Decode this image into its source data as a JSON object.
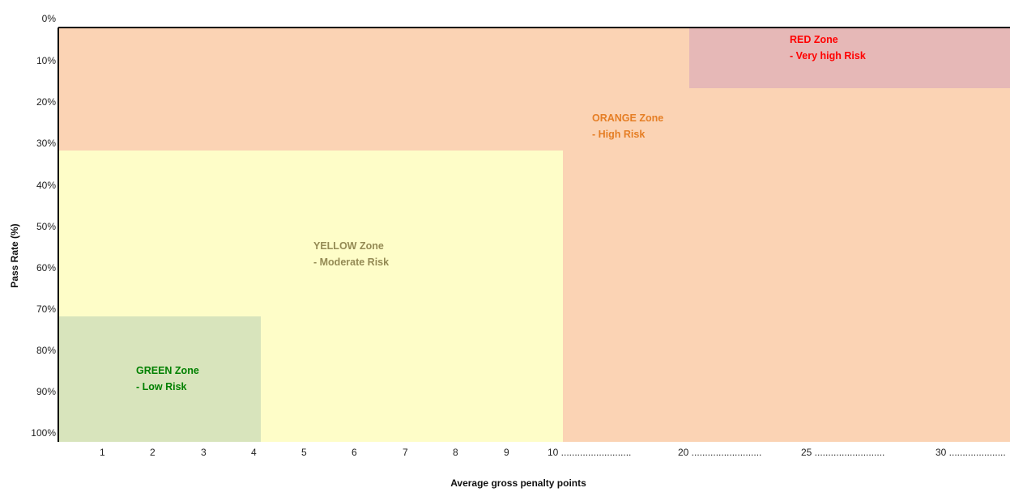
{
  "chart_data": {
    "type": "heatmap",
    "title": "",
    "xlabel": "Average gross penalty points",
    "ylabel": "Pass Rate (%)",
    "x_ticks": [
      "1",
      "2",
      "3",
      "4",
      "5",
      "6",
      "7",
      "8",
      "9",
      "10 ..........................",
      "20 ..........................",
      "25 ..........................",
      "30 ....................."
    ],
    "y_ticks": [
      "0%",
      "10%",
      "20%",
      "30%",
      "40%",
      "50%",
      "60%",
      "70%",
      "80%",
      "90%",
      "100%"
    ],
    "zones": [
      {
        "name": "ORANGE",
        "line1": "ORANGE Zone",
        "line2": "- High Risk",
        "color": "#fbd3b4",
        "text_color": "#e57e25",
        "x_range": [
          "0",
          "30+"
        ],
        "pass_rate_range": [
          0,
          100
        ]
      },
      {
        "name": "RED",
        "line1": "RED Zone",
        "line2": "- Very high Risk",
        "color": "#e6b8b7",
        "text_color": "#ff0000",
        "x_range": [
          "20",
          "30+"
        ],
        "pass_rate_range": [
          0,
          15
        ]
      },
      {
        "name": "YELLOW",
        "line1": "YELLOW Zone",
        "line2": "- Moderate  Risk",
        "color": "#fefdc8",
        "text_color": "#948a54",
        "x_range": [
          "0",
          "10"
        ],
        "pass_rate_range": [
          30,
          100
        ]
      },
      {
        "name": "GREEN",
        "line1": "GREEN Zone",
        "line2": "- Low Risk",
        "color": "#d8e4bc",
        "text_color": "#008000",
        "x_range": [
          "0",
          "4"
        ],
        "pass_rate_range": [
          70,
          100
        ]
      }
    ],
    "grid": false,
    "legend": "none"
  }
}
